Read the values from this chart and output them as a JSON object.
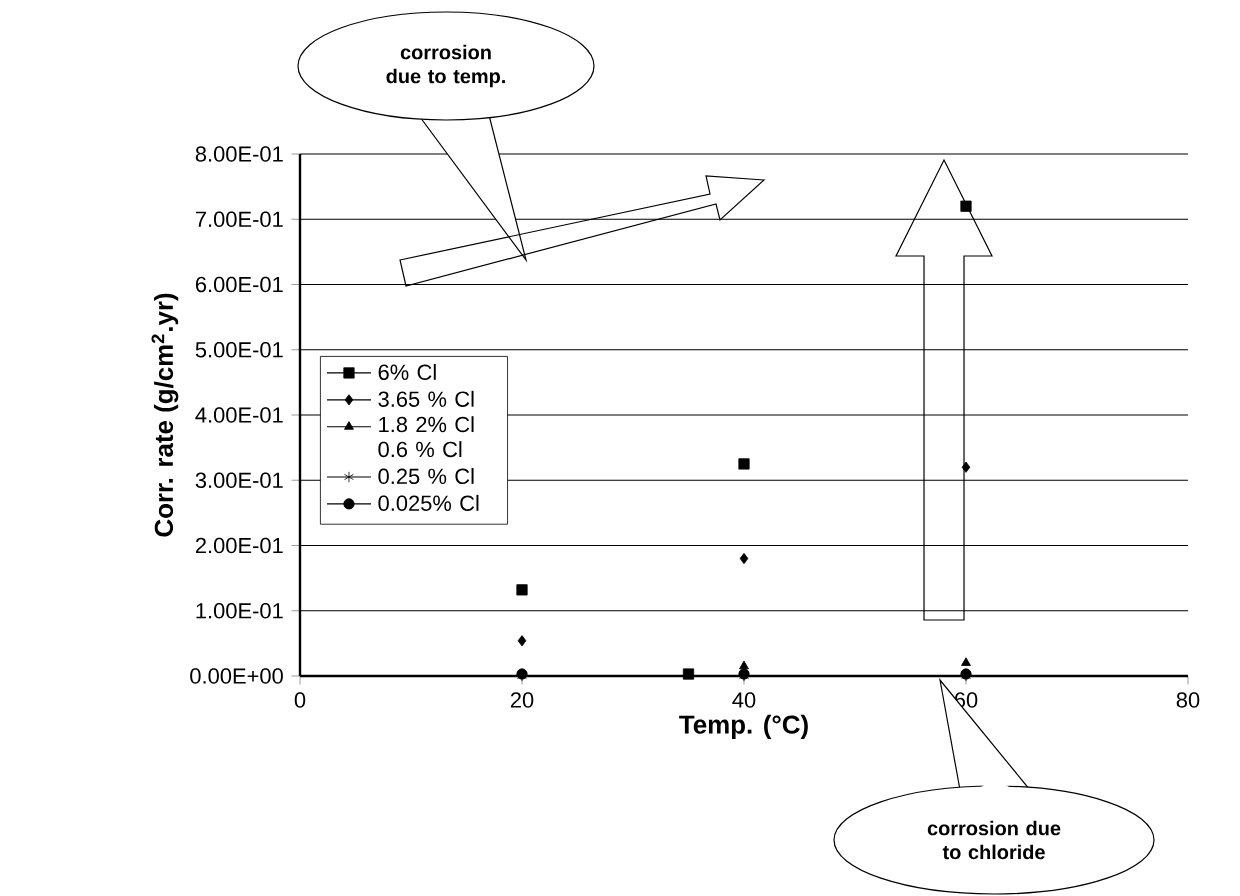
{
  "chart_data": {
    "type": "scatter",
    "xlabel": "Temp. (°C)",
    "ylabel": "Corr. rate (g/cm$^{2}$.yr)",
    "xlim": [
      0,
      80
    ],
    "xticks": [
      0,
      20,
      40,
      60,
      80
    ],
    "ylim": [
      0,
      0.8
    ],
    "yticks": [
      {
        "value": 0,
        "label": "0.00E+00"
      },
      {
        "value": 0.1,
        "label": "1.00E-01"
      },
      {
        "value": 0.2,
        "label": "2.00E-01"
      },
      {
        "value": 0.3,
        "label": "3.00E-01"
      },
      {
        "value": 0.4,
        "label": "4.00E-01"
      },
      {
        "value": 0.5,
        "label": "5.00E-01"
      },
      {
        "value": 0.6,
        "label": "6.00E-01"
      },
      {
        "value": 0.7,
        "label": "7.00E-01"
      },
      {
        "value": 0.8,
        "label": "8.00E-01"
      }
    ],
    "grid": "y",
    "legend": "left",
    "series": [
      {
        "name": "6% Cl",
        "color": "#000000",
        "marker": "square",
        "x": [
          20,
          35,
          40,
          60
        ],
        "values": [
          0.132,
          0.003,
          0.325,
          0.72
        ]
      },
      {
        "name": "3.65 % Cl",
        "color": "#000000",
        "marker": "diamond",
        "x": [
          20,
          40,
          60
        ],
        "values": [
          0.054,
          0.18,
          0.32
        ]
      },
      {
        "name": "1.8 2% Cl 0.6 % Cl",
        "color": "#000000",
        "marker": "triangle",
        "x": [
          40,
          60
        ],
        "values": [
          0.015,
          0.02
        ]
      },
      {
        "name": "0.25 % Cl",
        "color": "#000000",
        "marker": "cross",
        "x": [
          20,
          40,
          60
        ],
        "values": [
          0,
          0,
          0
        ]
      },
      {
        "name": "0.025% Cl",
        "color": "#000000",
        "marker": "circle",
        "x": [
          20,
          40,
          60
        ],
        "values": [
          0.003,
          0.003,
          0.003
        ]
      }
    ],
    "annotations": [
      "corrosion due to temp.",
      "corrosion due to chloride"
    ]
  }
}
